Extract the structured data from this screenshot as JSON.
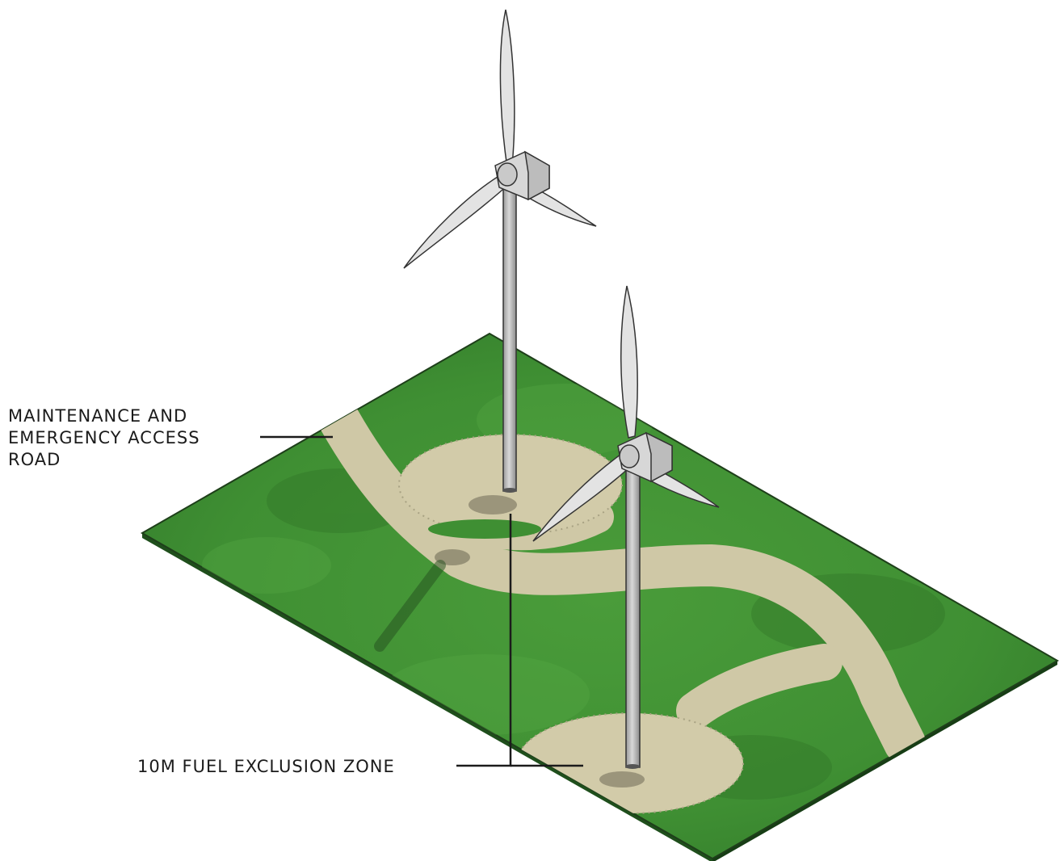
{
  "labels": {
    "road": {
      "line1": "MAINTENANCE AND",
      "line2": "EMERGENCY ACCESS",
      "line3": "ROAD"
    },
    "zone": "10M FUEL EXCLUSION ZONE"
  },
  "colors": {
    "grass": "#3f8f33",
    "grass_dark": "#2f7528",
    "grass_side": "#20561c",
    "gravel": "#d2cba9",
    "tower": "#bdbdbd",
    "blade": "#e3e3e3",
    "outline": "#333333"
  }
}
